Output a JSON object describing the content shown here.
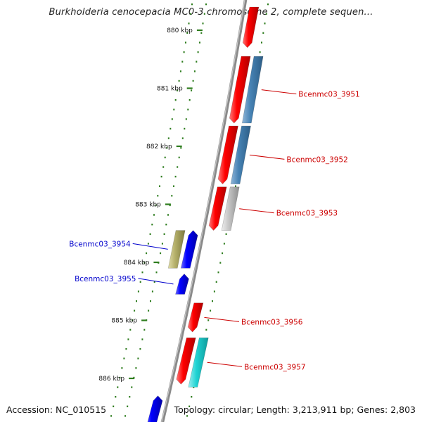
{
  "title": "Burkholderia cenocepacia MC0-3 chromosome 2, complete sequen...",
  "footer": {
    "accession": "Accession: NC_010515",
    "summary": "Topology: circular; Length: 3,213,911 bp; Genes: 2,803"
  },
  "colors": {
    "backbone": "#8a8a8a",
    "tick": "#2e7d1e",
    "label_red": "#cc0000",
    "label_blue": "#0000cc",
    "gene_red": "#ff0000",
    "gene_blue": "#0000ff",
    "gene_steel": "#4682b4",
    "gene_olive": "#b5b06a",
    "gene_gray": "#bdbdbd",
    "gene_cyan": "#1fd3d3"
  },
  "ticks": [
    {
      "label": "880 kbp"
    },
    {
      "label": "881 kbp"
    },
    {
      "label": "882 kbp"
    },
    {
      "label": "883 kbp"
    },
    {
      "label": "884 kbp"
    },
    {
      "label": "885 kbp"
    },
    {
      "label": "886 kbp"
    }
  ],
  "genes": [
    {
      "name": "",
      "track": "fwd1",
      "color": "gene_red",
      "start_kbp": 879.6,
      "end_kbp": 880.3
    },
    {
      "name": "Bcenmc03_3951",
      "track": "fwd2",
      "color": "gene_steel",
      "start_kbp": 880.45,
      "end_kbp": 881.6
    },
    {
      "name": "",
      "track": "fwd1",
      "color": "gene_red",
      "start_kbp": 880.45,
      "end_kbp": 881.6
    },
    {
      "name": "Bcenmc03_3952",
      "track": "fwd2",
      "color": "gene_steel",
      "start_kbp": 881.65,
      "end_kbp": 882.65
    },
    {
      "name": "",
      "track": "fwd1",
      "color": "gene_red",
      "start_kbp": 881.65,
      "end_kbp": 882.65
    },
    {
      "name": "Bcenmc03_3953",
      "track": "fwd2",
      "color": "gene_gray",
      "start_kbp": 882.7,
      "end_kbp": 883.45
    },
    {
      "name": "",
      "track": "fwd1",
      "color": "gene_red",
      "start_kbp": 882.7,
      "end_kbp": 883.45
    },
    {
      "name": "Bcenmc03_3954",
      "track": "rev2",
      "color": "gene_olive",
      "start_kbp": 883.45,
      "end_kbp": 884.1
    },
    {
      "name": "",
      "track": "rev1",
      "color": "gene_blue",
      "start_kbp": 883.45,
      "end_kbp": 884.1
    },
    {
      "name": "Bcenmc03_3955",
      "track": "rev1",
      "color": "gene_blue",
      "start_kbp": 884.2,
      "end_kbp": 884.55
    },
    {
      "name": "Bcenmc03_3956",
      "track": "fwd1",
      "color": "gene_red",
      "start_kbp": 884.7,
      "end_kbp": 885.2
    },
    {
      "name": "Bcenmc03_3957",
      "track": "fwd2",
      "color": "gene_cyan",
      "start_kbp": 885.3,
      "end_kbp": 886.15
    },
    {
      "name": "",
      "track": "fwd1",
      "color": "gene_red",
      "start_kbp": 885.3,
      "end_kbp": 886.1
    },
    {
      "name": "",
      "track": "rev1",
      "color": "gene_blue",
      "start_kbp": 886.3,
      "end_kbp": 886.9
    }
  ]
}
